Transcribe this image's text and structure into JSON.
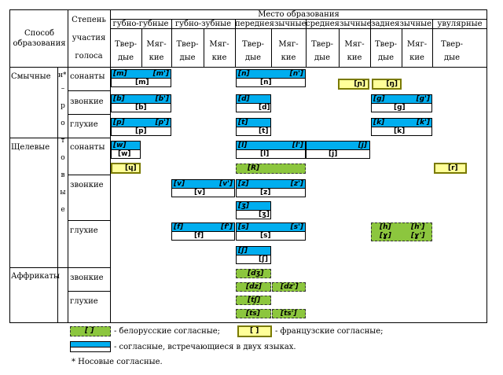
{
  "header": {
    "method": "Способ образования",
    "voice": [
      "Степень",
      "участия",
      "голоса"
    ],
    "place": "Место образования",
    "groups": [
      "губно-губные",
      "губно-зубные",
      "переднеязычные",
      "среднеязычные",
      "заднеязычные",
      "увулярные"
    ],
    "subcols": [
      [
        "Твер-",
        "дые"
      ],
      [
        "Мяг-",
        "кие"
      ],
      [
        "Твер-",
        "дые"
      ],
      [
        "Мяг-",
        "кие"
      ],
      [
        "Твер-",
        "дые"
      ],
      [
        "Мяг-",
        "кие"
      ],
      [
        "Твер-",
        "дые"
      ],
      [
        "Мяг-",
        "кие"
      ],
      [
        "Твер-",
        "дые"
      ],
      [
        "Мяг-",
        "кие"
      ],
      [
        "Твер-",
        "дые"
      ]
    ]
  },
  "rows": {
    "method_stops": "Смычные",
    "method_fricatives": "Щелевые",
    "method_affricates": "Аффрикаты",
    "nasal_marker": "н*",
    "vertical_label": [
      "–",
      "р",
      "о",
      "т",
      "о",
      "в",
      "ы",
      "е"
    ],
    "voice_sonants_1": "сонанты",
    "voice_voiced_1": "звонкие",
    "voice_voiceless_1": "глухие",
    "voice_sonants_2": "сонанты",
    "voice_voiced_2": "звонкие",
    "voice_voiceless_2": "глухие",
    "voice_voiced_3": "звонкие",
    "voice_voiceless_3": "глухие"
  },
  "symbols": {
    "m": "[m]",
    "m_soft": "[m']",
    "m_fr": "[m]",
    "n": "[n]",
    "n_soft": "[n']",
    "n_fr": "[n]",
    "nj": "[ɲ]",
    "ng": "[ŋ]",
    "b": "[b]",
    "b_soft": "[b']",
    "b_fr": "[b]",
    "d": "[d]",
    "d_fr": "[d]",
    "g": "[g]",
    "g_soft": "[g']",
    "g_fr": "[g]",
    "p": "[p]",
    "p_soft": "[p']",
    "p_fr": "[p]",
    "t": "[t]",
    "t_fr": "[t]",
    "k": "[k]",
    "k_soft": "[k']",
    "k_fr": "[k]",
    "w": "[w]",
    "w_fr": "[w]",
    "l": "[l]",
    "l_soft": "[l']",
    "l_fr": "[l]",
    "j": "[j]",
    "j_fr": "[j]",
    "y": "[ɥ]",
    "R": "[R]",
    "r_uv": "[r]",
    "v": "[v]",
    "v_soft": "[v']",
    "v_fr": "[v]",
    "z": "[z]",
    "z_soft": "[z']",
    "z_fr": "[z]",
    "zh": "[ʒ]",
    "zh_fr": "[ʒ]",
    "f": "[f]",
    "f_soft": "[f']",
    "f_fr": "[f]",
    "s": "[s]",
    "s_soft": "[s']",
    "s_fr": "[s]",
    "sh": "[ʃ]",
    "sh_fr": "[ʃ]",
    "h": "[h]",
    "h_soft": "[h']",
    "gh": "[ɣ]",
    "gh_soft": "[ɣ']",
    "dzh": "[dʒ]",
    "dz": "[dz]",
    "dz_soft": "[dz']",
    "tsh": "[tʃ]",
    "ts": "[ts]",
    "ts_soft": "[ts']"
  },
  "legend": {
    "green_sample": "[ ]",
    "green_text": "- белорусские согласные;",
    "yellow_sample": "[ ]",
    "yellow_text": "- французские согласные;",
    "blue_text": "- согласные, встречающиеся в двух языках.",
    "footnote": "*  Носовые согласные."
  },
  "colors": {
    "blue": "#00aeef",
    "green": "#8cc63e",
    "yellow": "#ffff99"
  }
}
